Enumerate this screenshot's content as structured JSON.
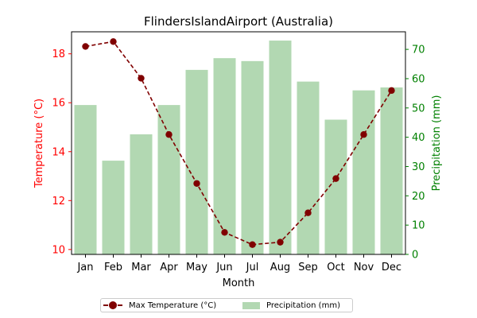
{
  "chart_data": {
    "type": "bar+line",
    "title": "FlindersIslandAirport (Australia)",
    "xlabel": "Month",
    "categories": [
      "Jan",
      "Feb",
      "Mar",
      "Apr",
      "May",
      "Jun",
      "Jul",
      "Aug",
      "Sep",
      "Oct",
      "Nov",
      "Dec"
    ],
    "left_axis": {
      "label": "Temperature (°C)",
      "color": "#ff0000",
      "ylim": [
        9.8,
        18.9
      ],
      "ticks": [
        "10",
        "12",
        "14",
        "16",
        "18"
      ]
    },
    "right_axis": {
      "label": "Precipitation (mm)",
      "color": "#008000",
      "ylim": [
        0,
        76
      ],
      "ticks": [
        "0",
        "10",
        "20",
        "30",
        "40",
        "50",
        "60",
        "70"
      ]
    },
    "series": [
      {
        "name": "Max Temperature (°C)",
        "type": "line",
        "axis": "left",
        "color": "#800000",
        "style": "dashed",
        "marker": "circle",
        "values": [
          18.3,
          18.5,
          17.0,
          14.7,
          12.7,
          10.7,
          10.2,
          10.3,
          11.5,
          12.9,
          14.7,
          16.5
        ]
      },
      {
        "name": "Precipitation (mm)",
        "type": "bar",
        "axis": "right",
        "color": "#b2d8b2",
        "values": [
          51,
          32,
          41,
          51,
          63,
          67,
          66,
          73,
          59,
          46,
          56,
          57
        ]
      }
    ],
    "legend_position": "bottom-center",
    "grid": false
  }
}
